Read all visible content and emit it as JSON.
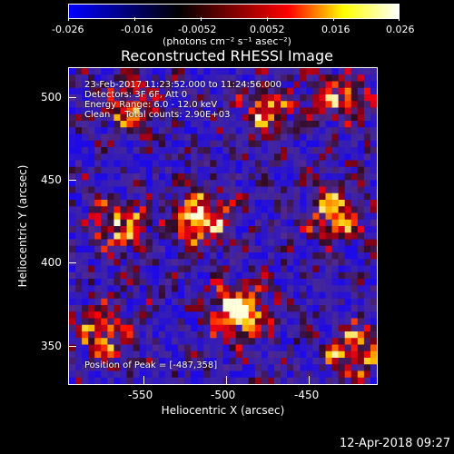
{
  "colorbar": {
    "labels": [
      "-0.026",
      "-0.016",
      "-0.0052",
      "0.0052",
      "0.016",
      "0.026"
    ],
    "units": "(photons cm⁻² s⁻¹ asec⁻²)",
    "colors": [
      "#0000ff",
      "#000080",
      "#000000",
      "#800000",
      "#ff0000",
      "#ffff00",
      "#ffffff"
    ]
  },
  "plot": {
    "title": "Reconstructed RHESSI Image",
    "info_lines": [
      "23-Feb-2017 11:23:52.000 to 11:24:56.000",
      "Detectors: 3F 6F, Att 0",
      "Energy Range: 6.0 - 12.0 keV",
      "Clean     Total counts: 2.90E+03"
    ],
    "peak_text": "Position of Peak = [-487,358]",
    "x_label": "Heliocentric X (arcsec)",
    "y_label": "Heliocentric Y (arcsec)",
    "x_ticks": [
      "-550",
      "-500",
      "-450"
    ],
    "y_ticks": [
      "500",
      "450",
      "400",
      "350"
    ]
  },
  "chart_data": {
    "type": "heatmap",
    "title": "Reconstructed RHESSI Image",
    "xlabel": "Heliocentric X (arcsec)",
    "ylabel": "Heliocentric Y (arcsec)",
    "xlim": [
      -593,
      -408
    ],
    "ylim": [
      327,
      522
    ],
    "x_ticks": [
      -550,
      -500,
      -450
    ],
    "y_ticks": [
      350,
      400,
      450,
      500
    ],
    "value_range": [
      -0.026,
      0.026
    ],
    "peak": [
      -487,
      358
    ],
    "bright_regions": [
      {
        "x": -491,
        "y": 372,
        "level": 1.0
      },
      {
        "x": -515,
        "y": 430,
        "level": 0.9
      },
      {
        "x": -563,
        "y": 425,
        "level": 0.6
      },
      {
        "x": -433,
        "y": 432,
        "level": 0.75
      },
      {
        "x": -422,
        "y": 348,
        "level": 0.7
      },
      {
        "x": -573,
        "y": 358,
        "level": 0.6
      },
      {
        "x": -555,
        "y": 497,
        "level": 0.55
      },
      {
        "x": -475,
        "y": 495,
        "level": 0.55
      },
      {
        "x": -430,
        "y": 505,
        "level": 0.55
      }
    ]
  },
  "timestamp": "12-Apr-2018 09:27"
}
